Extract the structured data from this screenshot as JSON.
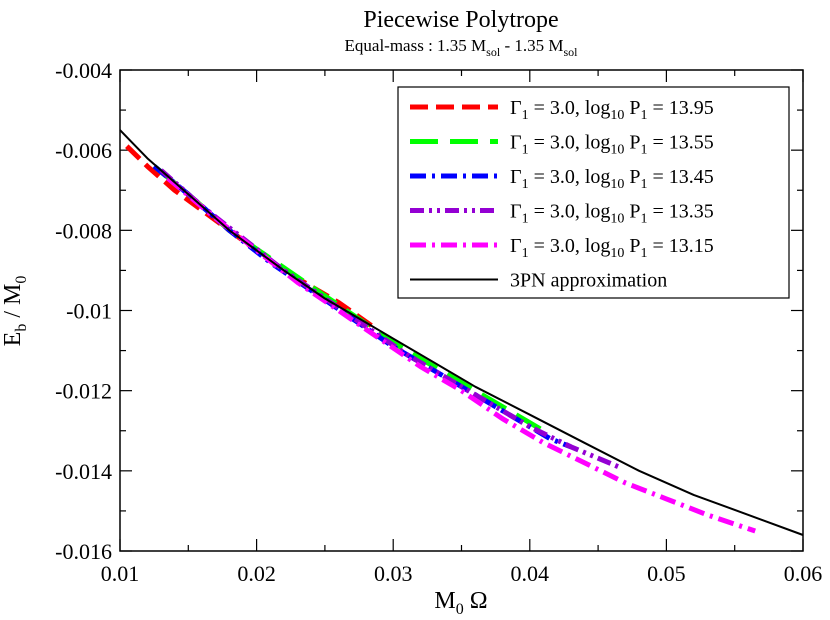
{
  "chart_data": {
    "type": "line",
    "title": "Piecewise Polytrope",
    "subtitle_parts": [
      "Equal-mass : 1.35 M",
      "sol",
      " - 1.35 M",
      "sol"
    ],
    "xlabel_parts": [
      "M",
      "0",
      " Ω"
    ],
    "ylabel_parts": [
      "E",
      "b",
      " / M",
      "0"
    ],
    "xlim": [
      0.01,
      0.06
    ],
    "ylim": [
      -0.016,
      -0.004
    ],
    "x_ticks": [
      0.01,
      0.02,
      0.03,
      0.04,
      0.05,
      0.06
    ],
    "x_tick_labels": [
      "0.01",
      "0.02",
      "0.03",
      "0.04",
      "0.05",
      "0.06"
    ],
    "y_ticks": [
      -0.016,
      -0.014,
      -0.012,
      -0.01,
      -0.008,
      -0.006,
      -0.004
    ],
    "y_tick_labels": [
      "-0.016",
      "-0.014",
      "-0.012",
      "-0.01",
      "-0.008",
      "-0.006",
      "-0.004"
    ],
    "grid": false,
    "legend_position": "top-right",
    "series": [
      {
        "name_parts": [
          "Γ",
          "1",
          " = 3.0,  log",
          "10",
          " P",
          "1",
          " = 13.95"
        ],
        "color": "#ff0000",
        "dash": "dashed",
        "points": [
          [
            0.0105,
            -0.0059
          ],
          [
            0.012,
            -0.0064
          ],
          [
            0.014,
            -0.007
          ],
          [
            0.016,
            -0.0075
          ],
          [
            0.018,
            -0.008
          ],
          [
            0.02,
            -0.0085
          ],
          [
            0.022,
            -0.009
          ],
          [
            0.024,
            -0.0094
          ],
          [
            0.026,
            -0.0098
          ],
          [
            0.0285,
            -0.0104
          ]
        ]
      },
      {
        "name_parts": [
          "Γ",
          "1",
          " = 3.0,  log",
          "10",
          " P",
          "1",
          " = 13.55"
        ],
        "color": "#00ff00",
        "dash": "long-dashed",
        "points": [
          [
            0.0125,
            -0.0064
          ],
          [
            0.015,
            -0.0071
          ],
          [
            0.018,
            -0.008
          ],
          [
            0.021,
            -0.0087
          ],
          [
            0.024,
            -0.0094
          ],
          [
            0.027,
            -0.0101
          ],
          [
            0.03,
            -0.0108
          ],
          [
            0.033,
            -0.0114
          ],
          [
            0.036,
            -0.012
          ],
          [
            0.039,
            -0.0126
          ],
          [
            0.041,
            -0.013
          ]
        ]
      },
      {
        "name_parts": [
          "Γ",
          "1",
          " = 3.0,  log",
          "10",
          " P",
          "1",
          " = 13.45"
        ],
        "color": "#0000ff",
        "dash": "dash-dot",
        "points": [
          [
            0.0125,
            -0.0064
          ],
          [
            0.015,
            -0.0071
          ],
          [
            0.018,
            -0.008
          ],
          [
            0.021,
            -0.0088
          ],
          [
            0.024,
            -0.0095
          ],
          [
            0.027,
            -0.0102
          ],
          [
            0.03,
            -0.0109
          ],
          [
            0.033,
            -0.0115
          ],
          [
            0.036,
            -0.0121
          ],
          [
            0.039,
            -0.0127
          ],
          [
            0.0415,
            -0.0132
          ],
          [
            0.043,
            -0.0134
          ]
        ]
      },
      {
        "name_parts": [
          "Γ",
          "1",
          " = 3.0,  log",
          "10",
          " P",
          "1",
          " = 13.35"
        ],
        "color": "#9400d3",
        "dash": "dash-dot-dot",
        "points": [
          [
            0.013,
            -0.0065
          ],
          [
            0.016,
            -0.0074
          ],
          [
            0.019,
            -0.0082
          ],
          [
            0.022,
            -0.009
          ],
          [
            0.025,
            -0.0097
          ],
          [
            0.028,
            -0.0104
          ],
          [
            0.031,
            -0.0111
          ],
          [
            0.034,
            -0.0117
          ],
          [
            0.037,
            -0.0123
          ],
          [
            0.04,
            -0.0129
          ],
          [
            0.043,
            -0.0134
          ],
          [
            0.0465,
            -0.0139
          ]
        ]
      },
      {
        "name_parts": [
          "Γ",
          "1",
          " = 3.0,  log",
          "10",
          " P",
          "1",
          " = 13.15"
        ],
        "color": "#ff00ff",
        "dash": "dash-dot",
        "points": [
          [
            0.0135,
            -0.0067
          ],
          [
            0.017,
            -0.0077
          ],
          [
            0.02,
            -0.0085
          ],
          [
            0.023,
            -0.0093
          ],
          [
            0.026,
            -0.01
          ],
          [
            0.029,
            -0.0107
          ],
          [
            0.032,
            -0.0114
          ],
          [
            0.035,
            -0.012
          ],
          [
            0.038,
            -0.0127
          ],
          [
            0.041,
            -0.0133
          ],
          [
            0.044,
            -0.0138
          ],
          [
            0.047,
            -0.0143
          ],
          [
            0.05,
            -0.0147
          ],
          [
            0.053,
            -0.0151
          ],
          [
            0.0565,
            -0.0155
          ]
        ]
      },
      {
        "name_parts": [
          "3PN approximation"
        ],
        "color": "#000000",
        "dash": "solid",
        "points": [
          [
            0.01,
            -0.0055
          ],
          [
            0.012,
            -0.0062
          ],
          [
            0.014,
            -0.0068
          ],
          [
            0.016,
            -0.0074
          ],
          [
            0.018,
            -0.008
          ],
          [
            0.02,
            -0.0085
          ],
          [
            0.022,
            -0.009
          ],
          [
            0.025,
            -0.0097
          ],
          [
            0.028,
            -0.0103
          ],
          [
            0.03,
            -0.0107
          ],
          [
            0.033,
            -0.0113
          ],
          [
            0.036,
            -0.0119
          ],
          [
            0.04,
            -0.0126
          ],
          [
            0.044,
            -0.0133
          ],
          [
            0.048,
            -0.014
          ],
          [
            0.052,
            -0.0146
          ],
          [
            0.056,
            -0.0151
          ],
          [
            0.06,
            -0.0156
          ]
        ]
      }
    ]
  }
}
